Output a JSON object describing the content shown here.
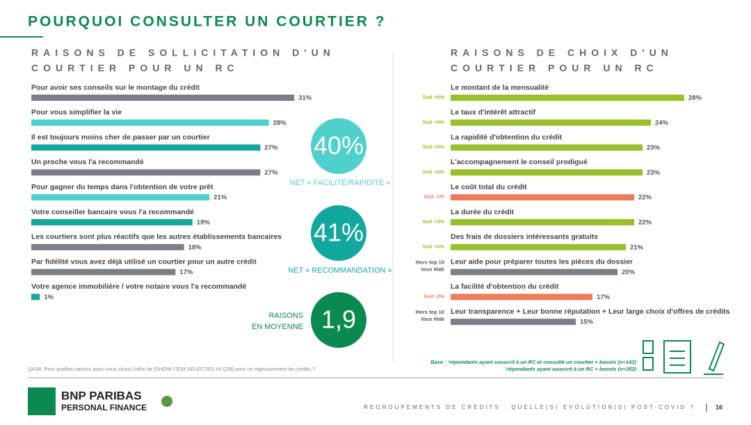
{
  "title": "POURQUOI CONSULTER UN COURTIER ?",
  "chart_data": [
    {
      "type": "bar",
      "title": [
        "RAISONS DE SOLLICITATION D'UN",
        "COURTIER POUR UN RC"
      ],
      "categories": [
        "Pour avoir ses conseils sur le montage du crédit",
        "Pour vous simplifier la vie",
        "Il est toujours moins cher de passer par un courtier",
        "Un proche vous l'a recommandé",
        "Pour gagner du temps dans l'obtention de votre prêt",
        "Votre conseiller bancaire vous l'a recommandé",
        "Les courtiers sont plus réactifs que les autres établissements bancaires",
        "Par fidélité vous avez déjà utilisé un courtier pour un autre crédit",
        "Votre agence immobilière / votre notaire vous l'a recommandé"
      ],
      "values": [
        31,
        28,
        27,
        27,
        21,
        19,
        18,
        17,
        1
      ],
      "value_labels": [
        "31%",
        "28%",
        "27%",
        "27%",
        "21%",
        "19%",
        "18%",
        "17%",
        "1%"
      ],
      "colors": [
        "#7b8088",
        "#4fd0cc",
        "#13a89e",
        "#7b8088",
        "#4fd0cc",
        "#13a89e",
        "#7b8088",
        "#7b8088",
        "#13a89e"
      ]
    },
    {
      "type": "bar",
      "title": [
        "RAISONS DE CHOIX D'UN",
        "COURTIER POUR UN RC"
      ],
      "categories": [
        "Le montant de la mensualité",
        "Le taux d'intérêt attractif",
        "La rapidité d'obtention du crédit",
        "L'accompagnement le conseil prodigué",
        "Le coût total du crédit",
        "La durée du crédit",
        "Des frais de dossiers intéressants gratuits",
        "Leur aide pour préparer toutes les pièces du dossier",
        "La facilité d'obtention du crédit",
        "Leur transparence + Leur bonne réputation + Leur large choix d'offres de crédits"
      ],
      "values": [
        28,
        24,
        23,
        23,
        22,
        22,
        21,
        20,
        17,
        15
      ],
      "value_labels": [
        "28%",
        "24%",
        "23%",
        "23%",
        "22%",
        "22%",
        "21%",
        "20%",
        "17%",
        "15%"
      ],
      "colors": [
        "#9bbf2a",
        "#9bbf2a",
        "#9bbf2a",
        "#9bbf2a",
        "#ef7b5d",
        "#9bbf2a",
        "#9bbf2a",
        "#7b8088",
        "#ef7b5d",
        "#7b8088"
      ],
      "notes": [
        [
          "Soit +8%"
        ],
        [
          "Soit +4%"
        ],
        [
          "Soit +5%"
        ],
        [
          "Soit +6%"
        ],
        [
          "Soit -1%"
        ],
        [
          "Soit +4%"
        ],
        [
          "Soit +5%"
        ],
        [
          "Hors top 10",
          "tous étab"
        ],
        [
          "Soit -2%"
        ],
        [
          "Hors top 10",
          "tous étab"
        ]
      ]
    }
  ],
  "badges": [
    {
      "value": "40%",
      "label": [
        "NET « FACILITÉ/RAPIDITÉ »"
      ],
      "color": "#4fd0cc"
    },
    {
      "value": "41%",
      "label": [
        "NET « RECOMMANDATION »"
      ],
      "color": "#13a89e"
    },
    {
      "value": "1,9",
      "label": [
        "RAISONS",
        "EN MOYENNE"
      ],
      "color": "#0a8a4e"
    }
  ],
  "question": "Q43B. Pour quelles raisons avez-vous choisi l'offre de [SHOW ITEM SELECTED IN Q38] pour ce regroupement de crédits ?",
  "base": [
    "Base : ¹répondants ayant souscrit à un RC et consulté un courtier + boosts (n=142)",
    "²répondants ayant souscrit à un RC + boosts (n=352)"
  ],
  "logo": [
    "BNP PARIBAS",
    "PERSONAL FINANCE"
  ],
  "footer": "REGROUPEMENTS DE CRÉDITS : QUELLE(S) EVOLUTION(S) POST-COVID ?",
  "page": "16"
}
